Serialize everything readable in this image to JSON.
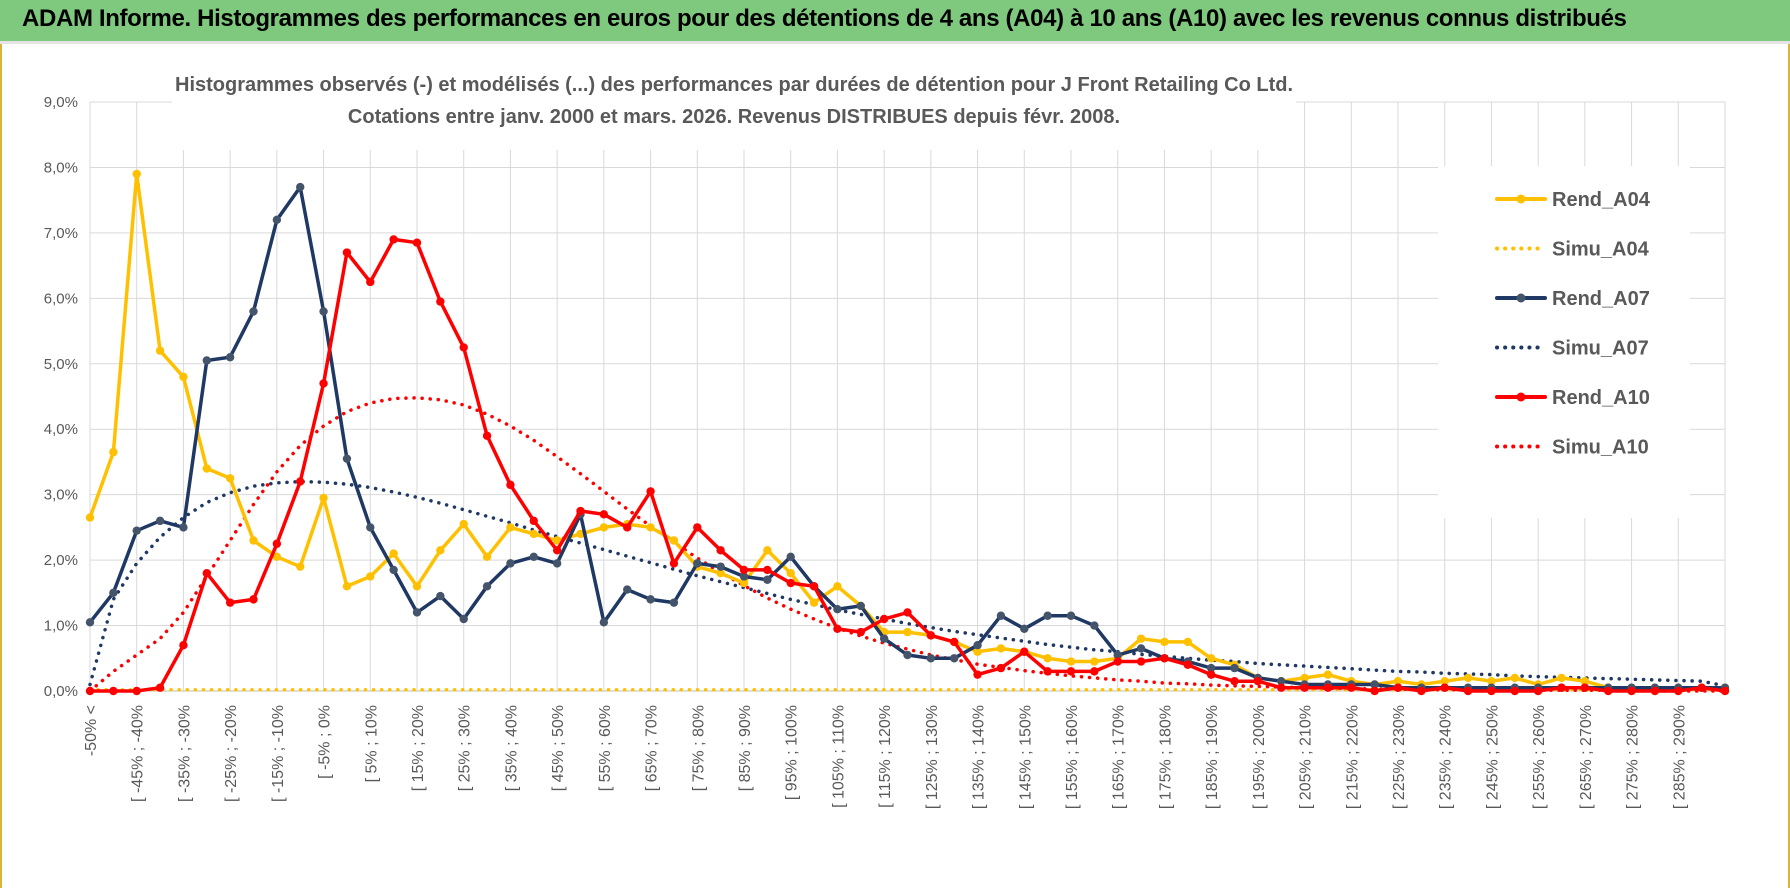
{
  "banner": {
    "title": "ADAM Informe. Histogrammes des performances en euros pour des détentions de 4 ans (A04) à 10 ans (A10) avec les revenus connus distribués"
  },
  "chart_data": {
    "type": "line",
    "title_line1": "Histogrammes observés (-) et modélisés (...) des performances par durées de détention pour J Front Retailing Co Ltd.",
    "title_line2": "Cotations entre janv. 2000 et mars. 2026.  Revenus DISTRIBUES depuis févr. 2008.",
    "ylim": [
      0,
      9
    ],
    "yticks": [
      "0,0%",
      "1,0%",
      "2,0%",
      "3,0%",
      "4,0%",
      "5,0%",
      "6,0%",
      "7,0%",
      "8,0%",
      "9,0%"
    ],
    "xlabels": [
      "-50% <",
      "[ -45% ; -40%",
      "[ -35% ; -30%",
      "[ -25% ; -20%",
      "[ -15% ; -10%",
      "[ -5% ; 0%",
      "[ 5% ; 10%",
      "[ 15% ; 20%",
      "[ 25% ; 30%",
      "[ 35% ; 40%",
      "[ 45% ; 50%",
      "[ 55% ; 60%",
      "[ 65% ; 70%",
      "[ 75% ; 80%",
      "[ 85% ; 90%",
      "[ 95% ; 100%",
      "[ 105% ; 110%",
      "[ 115% ; 120%",
      "[ 125% ; 130%",
      "[ 135% ; 140%",
      "[ 145% ; 150%",
      "[ 155% ; 160%",
      "[ 165% ; 170%",
      "[ 175% ; 180%",
      "[ 185% ; 190%",
      "[ 195% ; 200%",
      "[ 205% ; 210%",
      "[ 215% ; 220%",
      "[ 225% ; 230%",
      "[ 235% ; 240%",
      "[ 245% ; 250%",
      "[ 255% ; 260%",
      "[ 265% ; 270%",
      "[ 275% ; 280%",
      "[ 285% ; 290%"
    ],
    "series": [
      {
        "name": "Rend_A04",
        "color": "#ffc000",
        "style": "solid",
        "markers": true,
        "values": [
          2.65,
          3.65,
          7.9,
          5.2,
          4.8,
          3.4,
          3.25,
          2.3,
          2.05,
          1.9,
          2.95,
          1.6,
          1.75,
          2.1,
          1.6,
          2.15,
          2.55,
          2.05,
          2.5,
          2.4,
          2.3,
          2.4,
          2.5,
          2.55,
          2.5,
          2.3,
          1.9,
          1.8,
          1.65,
          2.15,
          1.8,
          1.35,
          1.6,
          1.3,
          0.9,
          0.9,
          0.85,
          0.75,
          0.6,
          0.65,
          0.6,
          0.5,
          0.45,
          0.45,
          0.5,
          0.8,
          0.75,
          0.75,
          0.5,
          0.4,
          0.2,
          0.15,
          0.2,
          0.25,
          0.15,
          0.1,
          0.15,
          0.1,
          0.15,
          0.2,
          0.15,
          0.2,
          0.1,
          0.2,
          0.15,
          0.05,
          0.05,
          0.05,
          0.05,
          0.05,
          0.05
        ]
      },
      {
        "name": "Simu_A04",
        "color": "#ffc000",
        "style": "dotted",
        "markers": false,
        "values": [
          0.02,
          0.02,
          0.02,
          0.02,
          0.02,
          0.02,
          0.02,
          0.02,
          0.02,
          0.02,
          0.02,
          0.02,
          0.02,
          0.02,
          0.02,
          0.02,
          0.02,
          0.02,
          0.02,
          0.02,
          0.02,
          0.02,
          0.02,
          0.02,
          0.02,
          0.02,
          0.02,
          0.02,
          0.02,
          0.02,
          0.02,
          0.02,
          0.02,
          0.02,
          0.02,
          0.02,
          0.02,
          0.02,
          0.02,
          0.02,
          0.02,
          0.02,
          0.02,
          0.02,
          0.02,
          0.02,
          0.02,
          0.02,
          0.02,
          0.02,
          0.02,
          0.02,
          0.02,
          0.02,
          0.02,
          0.02,
          0.02,
          0.02,
          0.02,
          0.02,
          0.02,
          0.02,
          0.02,
          0.02,
          0.02,
          0.02,
          0.02,
          0.02,
          0.02,
          0.02,
          0.02
        ]
      },
      {
        "name": "Rend_A07",
        "color": "#1f3864",
        "style": "solid",
        "markers": true,
        "values": [
          1.05,
          1.5,
          2.45,
          2.6,
          2.5,
          5.05,
          5.1,
          5.8,
          7.2,
          7.7,
          5.8,
          3.55,
          2.5,
          1.85,
          1.2,
          1.45,
          1.1,
          1.6,
          1.95,
          2.05,
          1.95,
          2.7,
          1.05,
          1.55,
          1.4,
          1.35,
          1.95,
          1.9,
          1.75,
          1.7,
          2.05,
          1.6,
          1.25,
          1.3,
          0.8,
          0.55,
          0.5,
          0.5,
          0.7,
          1.15,
          0.95,
          1.15,
          1.15,
          1.0,
          0.55,
          0.65,
          0.5,
          0.45,
          0.35,
          0.35,
          0.2,
          0.15,
          0.1,
          0.1,
          0.1,
          0.1,
          0.05,
          0.05,
          0.05,
          0.05,
          0.05,
          0.05,
          0.05,
          0.05,
          0.05,
          0.05,
          0.05,
          0.05,
          0.05,
          0.05,
          0.05
        ]
      },
      {
        "name": "Simu_A07",
        "color": "#1f3864",
        "style": "dotted",
        "markers": false,
        "values": [
          0.1,
          1.4,
          1.95,
          2.35,
          2.65,
          2.88,
          3.03,
          3.13,
          3.18,
          3.2,
          3.19,
          3.16,
          3.11,
          3.04,
          2.96,
          2.87,
          2.77,
          2.67,
          2.57,
          2.46,
          2.36,
          2.26,
          2.16,
          2.06,
          1.96,
          1.86,
          1.76,
          1.67,
          1.58,
          1.49,
          1.4,
          1.32,
          1.24,
          1.17,
          1.1,
          1.03,
          0.97,
          0.91,
          0.86,
          0.81,
          0.76,
          0.71,
          0.67,
          0.63,
          0.6,
          0.56,
          0.53,
          0.5,
          0.47,
          0.45,
          0.42,
          0.4,
          0.38,
          0.36,
          0.34,
          0.32,
          0.3,
          0.29,
          0.27,
          0.26,
          0.25,
          0.23,
          0.22,
          0.21,
          0.2,
          0.19,
          0.18,
          0.17,
          0.16,
          0.15,
          0.08
        ]
      },
      {
        "name": "Rend_A10",
        "color": "#ff0000",
        "style": "solid",
        "markers": true,
        "values": [
          0.0,
          0.0,
          0.0,
          0.05,
          0.7,
          1.8,
          1.35,
          1.4,
          2.25,
          3.2,
          4.7,
          6.7,
          6.25,
          6.9,
          6.85,
          5.95,
          5.25,
          3.9,
          3.15,
          2.6,
          2.15,
          2.75,
          2.7,
          2.5,
          3.05,
          1.95,
          2.5,
          2.15,
          1.85,
          1.85,
          1.65,
          1.6,
          0.95,
          0.9,
          1.1,
          1.2,
          0.85,
          0.75,
          0.25,
          0.35,
          0.6,
          0.3,
          0.3,
          0.3,
          0.45,
          0.45,
          0.5,
          0.4,
          0.25,
          0.15,
          0.15,
          0.05,
          0.05,
          0.05,
          0.05,
          0.0,
          0.05,
          0.0,
          0.05,
          0.0,
          0.0,
          0.0,
          0.0,
          0.05,
          0.05,
          0.0,
          0.0,
          0.0,
          0.0,
          0.05,
          0.0
        ]
      },
      {
        "name": "Simu_A10",
        "color": "#ff0000",
        "style": "dotted",
        "markers": false,
        "values": [
          0.0,
          0.3,
          0.55,
          0.8,
          1.2,
          1.75,
          2.3,
          2.85,
          3.35,
          3.75,
          4.05,
          4.27,
          4.4,
          4.47,
          4.48,
          4.45,
          4.37,
          4.23,
          4.05,
          3.83,
          3.58,
          3.32,
          3.05,
          2.78,
          2.52,
          2.27,
          2.03,
          1.81,
          1.61,
          1.42,
          1.25,
          1.1,
          0.96,
          0.84,
          0.73,
          0.64,
          0.55,
          0.48,
          0.41,
          0.36,
          0.31,
          0.27,
          0.23,
          0.2,
          0.17,
          0.15,
          0.12,
          0.11,
          0.09,
          0.08,
          0.07,
          0.06,
          0.05,
          0.04,
          0.04,
          0.03,
          0.03,
          0.02,
          0.02,
          0.02,
          0.01,
          0.01,
          0.01,
          0.01,
          0.01,
          0.01,
          0.01,
          0.0,
          0.0,
          0.0,
          0.0
        ]
      }
    ]
  }
}
